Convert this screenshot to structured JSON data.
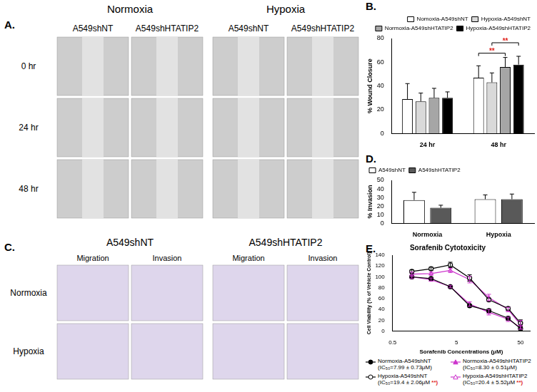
{
  "image_panels": [
    {
      "panel": "A.",
      "column_groups": [
        {
          "title": "Normoxia",
          "columns": [
            "A549shNT",
            "A549shHTATIP2"
          ]
        },
        {
          "title": "Hypoxia",
          "columns": [
            "A549shNT",
            "A549shHTATIP2"
          ]
        }
      ],
      "rows": [
        "0 hr",
        "24 hr",
        "48 hr"
      ]
    },
    {
      "panel": "C.",
      "column_groups": [
        {
          "title": "A549shNT",
          "columns": [
            "Migration",
            "Invasion"
          ]
        },
        {
          "title": "A549shHTATIP2",
          "columns": [
            "Migration",
            "Invasion"
          ]
        }
      ],
      "rows": [
        "Normoxia",
        "Hypoxia"
      ]
    }
  ],
  "chart_data": [
    {
      "panel": "B.",
      "type": "bar",
      "categories": [
        "24 hr",
        "48 hr"
      ],
      "y_label": "% Wound Closure",
      "ylim": [
        0,
        80
      ],
      "yticks": [
        0,
        20,
        40,
        60,
        80
      ],
      "grid": false,
      "legend": "top-right",
      "series": [
        {
          "name": "Nomoxia-A549shNT",
          "color": "#ffffff",
          "values": [
            29,
            47
          ],
          "errors": [
            13,
            10
          ]
        },
        {
          "name": "Hypoxia-A549shNT",
          "color": "#d9d9d9",
          "values": [
            27,
            43
          ],
          "errors": [
            7,
            8
          ]
        },
        {
          "name": "Normoxia-A549shHTATIP2",
          "color": "#a6a6a6",
          "values": [
            30,
            56
          ],
          "errors": [
            8,
            8
          ]
        },
        {
          "name": "Hypoxia-A549shHTATIP2",
          "color": "#000000",
          "values": [
            30,
            58
          ],
          "errors": [
            5,
            7
          ]
        }
      ],
      "significance": [
        {
          "category": "48 hr",
          "between": [
            "Nomoxia-A549shNT",
            "Normoxia-A549shHTATIP2"
          ],
          "label": "**",
          "color": "#e0201b"
        },
        {
          "category": "48 hr",
          "between": [
            "Hypoxia-A549shNT",
            "Hypoxia-A549shHTATIP2"
          ],
          "label": "**",
          "color": "#e0201b"
        }
      ]
    },
    {
      "panel": "D.",
      "type": "bar",
      "categories": [
        "Normoxia",
        "Hypoxia"
      ],
      "y_label": "% Invasion",
      "ylim": [
        0,
        50
      ],
      "yticks": [
        0,
        10,
        20,
        30,
        40,
        50
      ],
      "grid": false,
      "legend": "top-left",
      "series": [
        {
          "name": "A549shNT",
          "color": "#ffffff",
          "values": [
            27,
            28
          ],
          "errors": [
            9,
            5
          ]
        },
        {
          "name": "A549shHTATIP2",
          "color": "#595959",
          "values": [
            18,
            28
          ],
          "errors": [
            3,
            6
          ]
        }
      ]
    },
    {
      "panel": "E.",
      "type": "line",
      "title": "Sorafenib Cytotoxicity",
      "x_label": "Sorafenib Concentrations (μM)",
      "y_label": "Cell Viability (% of Vehicle Control)",
      "log": "x",
      "xlim": [
        0.5,
        70
      ],
      "xticks": [
        0.5,
        5,
        50
      ],
      "ylim": [
        0,
        140
      ],
      "yticks": [
        0,
        20,
        40,
        60,
        80,
        100,
        120,
        140
      ],
      "grid": false,
      "x": [
        1,
        2,
        4,
        8,
        16,
        32,
        50
      ],
      "series": [
        {
          "name": "Normoxia-A549shNT",
          "note": "(IC₅₀=7.99 ± 0.73μM)",
          "color": "#000000",
          "marker": "circle",
          "values": [
            100,
            97,
            82,
            47,
            38,
            24,
            5
          ],
          "errors": [
            2,
            2,
            2,
            2,
            3,
            3,
            3
          ]
        },
        {
          "name": "Hypoxia-A549shNT",
          "note": "(IC₅₀=19.4 ± 2.06μM",
          "significance": "**)",
          "color": "#000000",
          "marker": "open-circle",
          "values": [
            110,
            115,
            122,
            98,
            58,
            42,
            15
          ],
          "errors": [
            3,
            3,
            5,
            6,
            3,
            3,
            6
          ]
        },
        {
          "name": "Normoxia-A549shHTATIP2",
          "note": "(IC₅₀=8.30 ± 0.51μM)",
          "color": "#cc33cc",
          "marker": "triangle",
          "values": [
            100,
            95,
            82,
            50,
            35,
            22,
            7
          ],
          "errors": [
            3,
            3,
            2,
            4,
            5,
            4,
            3
          ]
        },
        {
          "name": "Hypoxia-A549shHTATIP2",
          "note": "(IC₅₀=20.4 ± 5.52μM",
          "significance": "**)",
          "color": "#cc33cc",
          "marker": "open-triangle",
          "values": [
            105,
            106,
            112,
            95,
            62,
            40,
            12
          ],
          "errors": [
            4,
            3,
            4,
            6,
            6,
            4,
            8
          ]
        }
      ]
    }
  ]
}
